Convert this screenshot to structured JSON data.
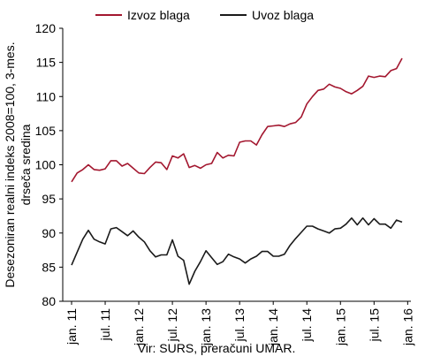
{
  "chart_data": {
    "type": "line",
    "ylabel_lines": [
      "Desezoniran realni indeks 2008=100, 3-mes.",
      "drseča sredina"
    ],
    "ylim": [
      80,
      120
    ],
    "yticks": [
      80,
      85,
      90,
      95,
      100,
      105,
      110,
      115,
      120
    ],
    "grid": false,
    "legend_position": "top",
    "x_tick_labels": [
      "jan. 11",
      "jul. 11",
      "jan. 12",
      "jul. 12",
      "jan. 13",
      "jul. 13",
      "jan. 14",
      "jul. 14",
      "jan. 15",
      "jul. 15",
      "jan. 16"
    ],
    "x_start_label": "jan. 11",
    "series": [
      {
        "name": "Izvoz blaga",
        "color": "#a3172f",
        "values": [
          97.5,
          98.8,
          99.3,
          100.0,
          99.3,
          99.2,
          99.4,
          100.6,
          100.6,
          99.8,
          100.2,
          99.5,
          98.8,
          98.7,
          99.6,
          100.4,
          100.3,
          99.3,
          101.3,
          101.0,
          101.6,
          99.6,
          99.9,
          99.5,
          100.0,
          100.2,
          101.8,
          101.0,
          101.4,
          101.3,
          103.3,
          103.5,
          103.5,
          102.9,
          104.4,
          105.6,
          105.7,
          105.8,
          105.6,
          106.0,
          106.2,
          107.0,
          108.9,
          110.0,
          110.9,
          111.1,
          111.8,
          111.4,
          111.2,
          110.7,
          110.4,
          110.9,
          111.5,
          113.0,
          112.8,
          113.0,
          112.9,
          113.8,
          114.1,
          115.6
        ]
      },
      {
        "name": "Uvoz blaga",
        "color": "#1a1a1a",
        "values": [
          85.3,
          87.2,
          89.1,
          90.4,
          89.1,
          88.7,
          88.4,
          90.6,
          90.8,
          90.2,
          89.6,
          90.3,
          89.4,
          88.7,
          87.4,
          86.5,
          86.8,
          86.8,
          89.0,
          86.6,
          86.0,
          82.5,
          84.4,
          85.8,
          87.4,
          86.4,
          85.4,
          85.8,
          86.9,
          86.5,
          86.2,
          85.6,
          86.2,
          86.6,
          87.3,
          87.3,
          86.6,
          86.6,
          86.9,
          88.2,
          89.2,
          90.1,
          91.0,
          91.0,
          90.6,
          90.3,
          90.0,
          90.6,
          90.7,
          91.3,
          92.2,
          91.2,
          92.2,
          91.2,
          92.1,
          91.3,
          91.3,
          90.7,
          91.9,
          91.6
        ]
      }
    ]
  },
  "source_text": "Vir: SURS, preračuni UMAR."
}
